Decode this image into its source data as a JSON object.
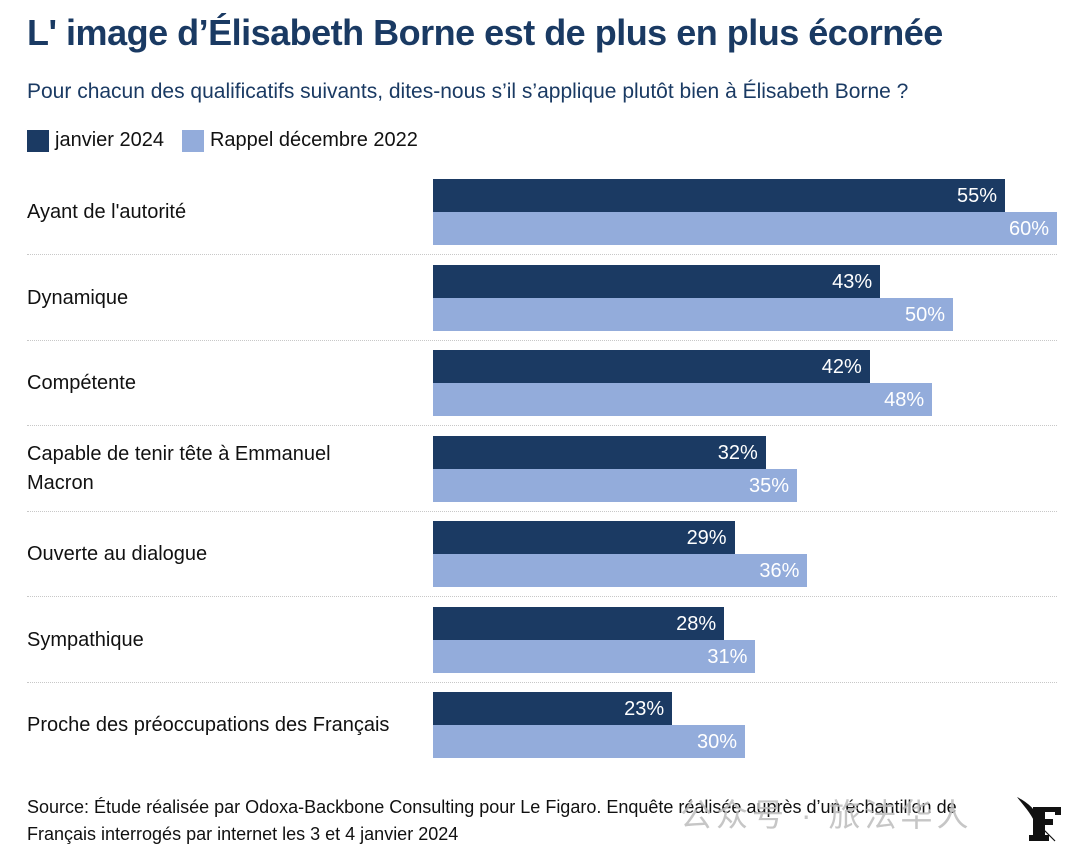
{
  "chart_data": {
    "type": "bar",
    "orientation": "horizontal",
    "title": "L' image d’Élisabeth Borne est de plus en plus écornée",
    "subtitle": "Pour chacun des qualificatifs suivants, dites-nous s’il s’applique plutôt bien à Élisabeth Borne ?",
    "categories": [
      "Ayant de l'autorité",
      "Dynamique",
      "Compétente",
      "Capable de tenir tête à Emmanuel Macron",
      "Ouverte au dialogue",
      "Sympathique",
      "Proche des préoccupations des Français"
    ],
    "series": [
      {
        "name": "janvier 2024",
        "color": "#1b3a63",
        "values": [
          55,
          43,
          42,
          32,
          29,
          28,
          23
        ]
      },
      {
        "name": "Rappel décembre 2022",
        "color": "#93acdb",
        "values": [
          60,
          50,
          48,
          35,
          36,
          31,
          30
        ]
      }
    ],
    "unit": "%",
    "xlim": [
      0,
      60
    ],
    "legend": "top-left",
    "grid": false
  },
  "source": "Source: Étude réalisée par Odoxa-Backbone Consulting pour Le Figaro. Enquête réalisée auprès d’un échantillon de Français interrogés par internet les 3 et 4 janvier 2024",
  "watermark": "公众号 · 旅法华人",
  "logo": "le-figaro-logo"
}
